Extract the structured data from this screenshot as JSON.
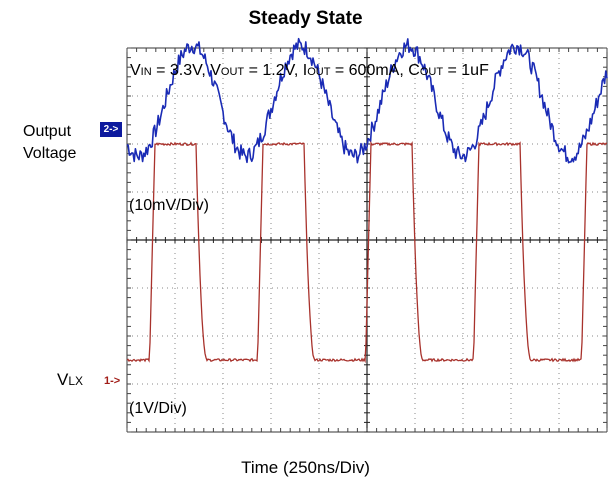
{
  "chart_data": {
    "type": "line",
    "title": "Steady State",
    "conditions": {
      "vin": "3.3V",
      "vout": "1.2V",
      "iout": "600mA",
      "cout": "1uF"
    },
    "xlabel": "Time (250ns/Div)",
    "x_divisions": 10,
    "y_divisions": 8,
    "channels": [
      {
        "marker": "2->",
        "label": "Output Voltage",
        "scale": "(10mV/Div)",
        "color": "#1a2bb5",
        "waveform": "sinusoidal ripple",
        "period_div": 2.25,
        "amplitude_div": 1.15,
        "center_div": 6.9
      },
      {
        "marker": "1->",
        "label": "VLX",
        "scale": "(1V/Div)",
        "color": "#a8322c",
        "waveform": "square",
        "low_div": 1.5,
        "high_div": 6.0,
        "period_div": 2.25,
        "duty": 0.43
      }
    ]
  },
  "labels": {
    "title": "Steady State",
    "cond_vin_pre": "V",
    "cond_vin_sub": "IN",
    "cond_vin_val": " = 3.3V, ",
    "cond_vout_pre": "V",
    "cond_vout_sub": "OUT",
    "cond_vout_val": " = 1.2V, ",
    "cond_iout_pre": "I",
    "cond_iout_sub": "OUT",
    "cond_iout_val": " = 600mA, ",
    "cond_cout_pre": "C",
    "cond_cout_sub": "OUT",
    "cond_cout_val": " = 1uF",
    "output_line1": "Output",
    "output_line2": "Voltage",
    "marker2": "2->",
    "scale_top": "(10mV/Div)",
    "vlx_pre": "V",
    "vlx_sub": "LX",
    "marker1": "1->",
    "scale_bottom": "(1V/Div)",
    "xlabel": "Time (250ns/Div)"
  }
}
